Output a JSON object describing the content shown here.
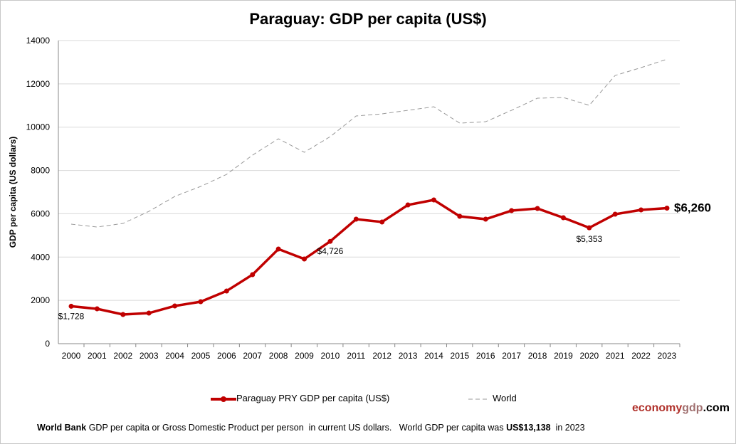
{
  "chart_data": {
    "type": "line",
    "title": "Paraguay: GDP per capita (US$)",
    "ylabel": "GDP per capita (US dollars)",
    "xlabel": "",
    "ylim": [
      0,
      14000
    ],
    "yticks": [
      0,
      2000,
      4000,
      6000,
      8000,
      10000,
      12000,
      14000
    ],
    "grid": true,
    "legend_position": "bottom",
    "x": [
      2000,
      2001,
      2002,
      2003,
      2004,
      2005,
      2006,
      2007,
      2008,
      2009,
      2010,
      2011,
      2012,
      2013,
      2014,
      2015,
      2016,
      2017,
      2018,
      2019,
      2020,
      2021,
      2022,
      2023
    ],
    "series": [
      {
        "name": "Paraguay PRY GDP per capita (US$)",
        "color": "#c00000",
        "values": [
          1728,
          1610,
          1347,
          1413,
          1742,
          1939,
          2432,
          3188,
          4370,
          3910,
          4726,
          5750,
          5620,
          6408,
          6638,
          5882,
          5750,
          6145,
          6243,
          5816,
          5353,
          5980,
          6178,
          6260
        ]
      },
      {
        "name": "World",
        "color": "#999999",
        "values": [
          5520,
          5389,
          5553,
          6112,
          6802,
          7262,
          7820,
          8708,
          9464,
          8840,
          9562,
          10515,
          10614,
          10778,
          10942,
          10187,
          10252,
          10778,
          11337,
          11370,
          11008,
          12388,
          12750,
          13138
        ]
      }
    ],
    "annotations": [
      {
        "x": 2000,
        "text": "$1,728"
      },
      {
        "x": 2010,
        "text": "$4,726"
      },
      {
        "x": 2020,
        "text": "$5,353"
      },
      {
        "x": 2023,
        "text": "$6,260"
      }
    ]
  },
  "footer": {
    "source": "World Bank",
    "text": " GDP per capita or Gross Domestic Product per person  in current US dollars.   World GDP per capita was ",
    "world_value": "US$13,138",
    "year_text": "  in 2023"
  },
  "logo": {
    "part1": "economy",
    "part2": "gdp",
    "part3": ".com"
  }
}
